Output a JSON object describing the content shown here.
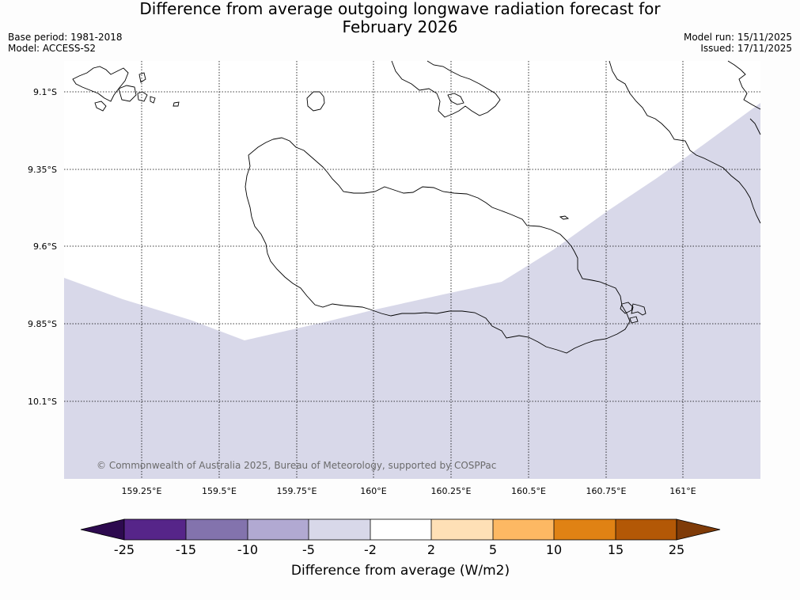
{
  "header": {
    "title_line1": "Difference from average outgoing longwave radiation forecast for",
    "title_line2": "February 2026",
    "base_period": "Base period: 1981-2018",
    "model": "Model: ACCESS-S2",
    "model_run": "Model run: 15/11/2025",
    "issued": "Issued: 17/11/2025"
  },
  "map": {
    "latitude_labels": [
      "9.1°S",
      "9.35°S",
      "9.6°S",
      "9.85°S",
      "10.1°S"
    ],
    "longitude_labels": [
      "159.25°E",
      "159.5°E",
      "159.75°E",
      "160°E",
      "160.25°E",
      "160.5°E",
      "160.75°E",
      "161°E"
    ],
    "credit": "© Commonwealth of Australia 2025, Bureau of Meteorology, supported by COSPPac",
    "shaded_category": "-5 to -2",
    "colors": {
      "shaded": "#d8d8e9",
      "coast": "#000000",
      "grid": "#000000"
    }
  },
  "colorbar": {
    "label": "Difference from average (W/m2)",
    "ticks": [
      "-25",
      "-15",
      "-10",
      "-5",
      "-2",
      "2",
      "5",
      "10",
      "15",
      "25"
    ],
    "colors": {
      "lt_neg25": "#2d0a4f",
      "neg25_neg15": "#562589",
      "neg15_neg10": "#8373ad",
      "neg10_neg5": "#b1a9d2",
      "neg5_neg2": "#d8d8e9",
      "neg2_2": "#ffffff",
      "2_5": "#fee0b6",
      "5_10": "#fdb863",
      "10_15": "#e08214",
      "15_25": "#b35806",
      "gt_25": "#7f3b08"
    }
  }
}
